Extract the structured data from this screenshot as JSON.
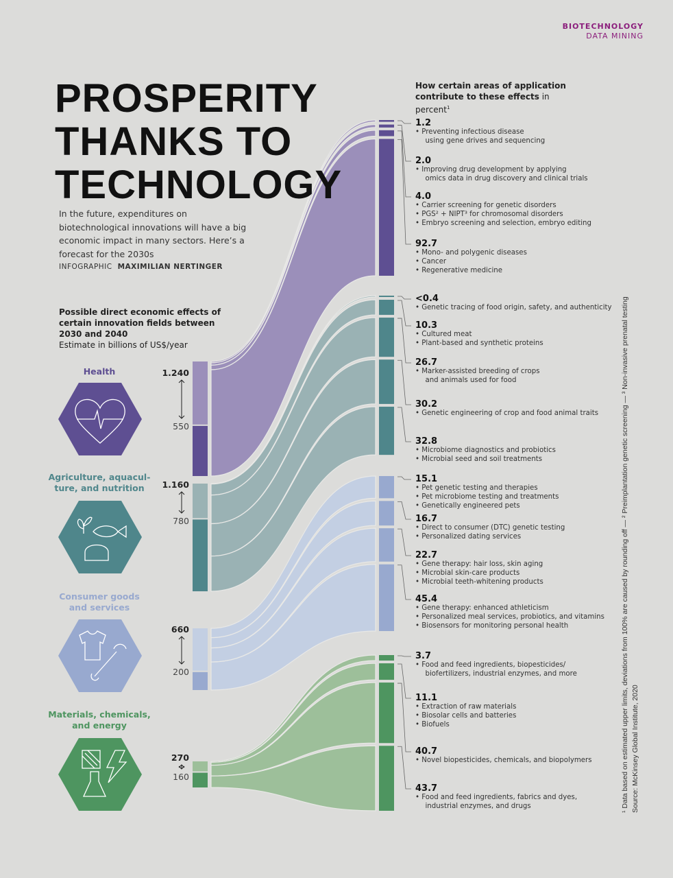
{
  "header": {
    "section": "BIOTECHNOLOGY",
    "subsection": "DATA MINING"
  },
  "title_lines": [
    "PROSPERITY",
    "THANKS TO",
    "TECHNOLOGY"
  ],
  "intro": "In the future, expenditures on biotechnological innovations will have a big economic impact in many sectors. Here’s a forecast for the 2030s",
  "credit": {
    "label": "INFOGRAPHIC",
    "author": "MAXIMILIAN NERTINGER"
  },
  "left_heading": {
    "title": "Possible direct economic effects of certain innovation fields between 2030 and 2040",
    "subtitle": "Estimate in billions of US$/year"
  },
  "right_heading": {
    "title": "How certain areas of application contribute to these effects",
    "unit": "in percent",
    "note_mark": "1"
  },
  "footnote": {
    "line1": "¹ Data based on estimated upper limits, deviations from 100% are caused by rounding off — ² Preimplantation genetic screening — ³ Non-invasive prenatal testing",
    "line2": "Source: McKinsey Global Institute, 2020"
  },
  "colors": {
    "health": "#5e4f92",
    "health_light": "#9b8fba",
    "agri": "#4f868b",
    "agri_light": "#9ab2b4",
    "consumer": "#98a9cf",
    "consumer_light": "#c3cfe3",
    "materials": "#4e9560",
    "materials_light": "#9dbf9a",
    "accent": "#8b1e7c"
  },
  "groups": [
    {
      "name": "Health",
      "icon": "heart-pulse-icon",
      "upper": "1.240",
      "lower": "550",
      "upper_value": 1240,
      "lower_value": 550,
      "areas": [
        {
          "value": "1.2",
          "items": [
            "Preventing infectious disease\nusing gene drives and sequencing"
          ]
        },
        {
          "value": "2.0",
          "items": [
            "Improving drug development by applying\nomics data in drug discovery and clinical trials"
          ]
        },
        {
          "value": "4.0",
          "items": [
            "Carrier screening for genetic disorders",
            "PGS² + NIPT³ for chromosomal disorders",
            "Embryo screening and selection, embryo editing"
          ]
        },
        {
          "value": "92.7",
          "items": [
            "Mono- and polygenic diseases",
            "Cancer",
            "Regenerative medicine"
          ]
        }
      ]
    },
    {
      "name": "Agriculture, aquacul-\nture, and nutrition",
      "icon": "plant-fish-bread-icon",
      "upper": "1.160",
      "lower": "780",
      "upper_value": 1160,
      "lower_value": 780,
      "areas": [
        {
          "value": "<0.4",
          "items": [
            "Genetic tracing of food origin, safety, and authenticity"
          ]
        },
        {
          "value": "10.3",
          "items": [
            "Cultured meat",
            "Plant-based and synthetic proteins"
          ]
        },
        {
          "value": "26.7",
          "items": [
            "Marker-assisted breeding of crops\nand animals used for food"
          ]
        },
        {
          "value": "30.2",
          "items": [
            "Genetic engineering of crop and food animal traits"
          ]
        },
        {
          "value": "32.8",
          "items": [
            "Microbiome diagnostics and probiotics",
            "Microbial seed and soil treatments"
          ]
        }
      ]
    },
    {
      "name": "Consumer goods\nand services",
      "icon": "shirt-wrench-icon",
      "upper": "660",
      "lower": "200",
      "upper_value": 660,
      "lower_value": 200,
      "areas": [
        {
          "value": "15.1",
          "items": [
            "Pet genetic testing and therapies",
            "Pet microbiome testing and treatments",
            "Genetically engineered pets"
          ]
        },
        {
          "value": "16.7",
          "items": [
            "Direct to consumer (DTC) genetic testing",
            "Personalized dating services"
          ]
        },
        {
          "value": "22.7",
          "items": [
            "Gene therapy: hair loss, skin aging",
            "Microbial skin-care products",
            "Microbial teeth-whitening products"
          ]
        },
        {
          "value": "45.4",
          "items": [
            "Gene therapy: enhanced athleticism",
            "Personalized meal services, probiotics, and vitamins",
            "Biosensors for monitoring personal health"
          ]
        }
      ]
    },
    {
      "name": "Materials, chemicals,\nand energy",
      "icon": "material-flask-lightning-icon",
      "upper": "270",
      "lower": "160",
      "upper_value": 270,
      "lower_value": 160,
      "areas": [
        {
          "value": "3.7",
          "items": [
            "Food and feed ingredients, biopesticides/\nbiofertilizers, industrial enzymes, and more"
          ]
        },
        {
          "value": "11.1",
          "items": [
            "Extraction of raw materials",
            "Biosolar cells and batteries",
            "Biofuels"
          ]
        },
        {
          "value": "40.7",
          "items": [
            "Novel biopesticides, chemicals, and biopolymers"
          ]
        },
        {
          "value": "43.7",
          "items": [
            "Food and feed ingredients, fabrics and dyes,\nindustrial enzymes, and drugs"
          ]
        }
      ]
    }
  ]
}
